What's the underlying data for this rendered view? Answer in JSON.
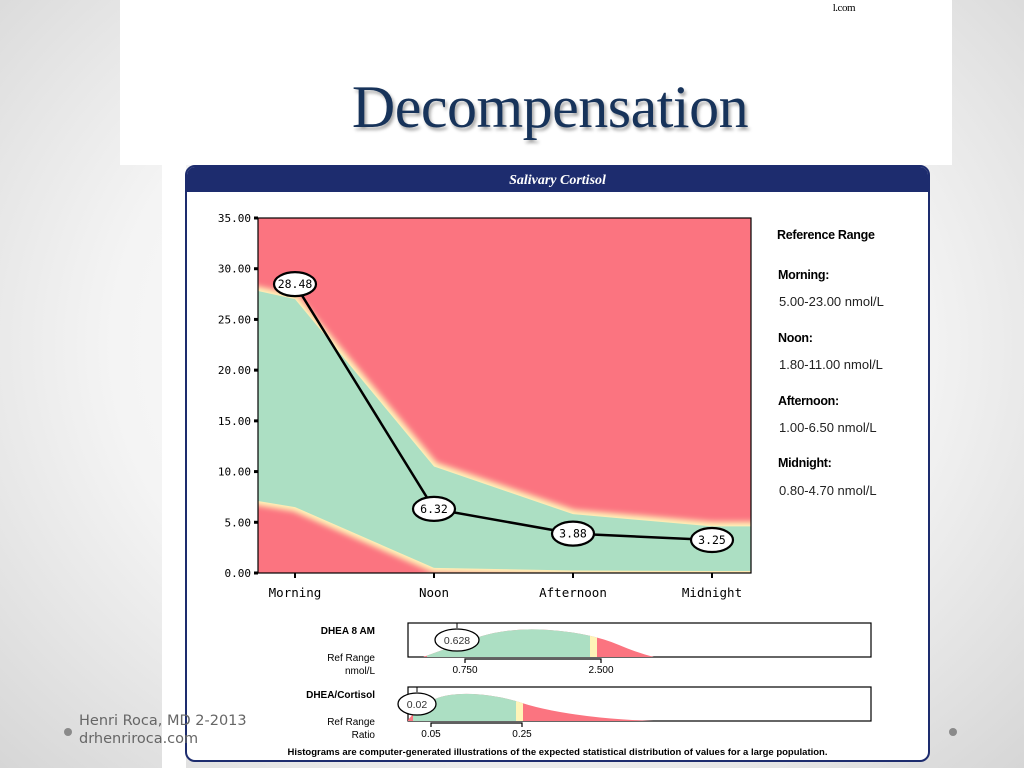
{
  "slide": {
    "title": "Decompensation",
    "site_corner": "l.com",
    "footer_author": "Henri Roca, MD 2-2013",
    "footer_site": "drhenriroca.com"
  },
  "panel": {
    "header": "Salivary Cortisol",
    "reference_title": "Reference Range",
    "ranges": [
      {
        "label": "Morning:",
        "value": "5.00-23.00 nmol/L"
      },
      {
        "label": "Noon:",
        "value": "1.80-11.00 nmol/L"
      },
      {
        "label": "Afternoon:",
        "value": "1.00-6.50 nmol/L"
      },
      {
        "label": "Midnight:",
        "value": "0.80-4.70 nmol/L"
      }
    ],
    "note": "Histograms are computer-generated illustrations of the expected statistical distribution of values for a large population."
  },
  "chart_data": [
    {
      "type": "line",
      "title": "Salivary Cortisol",
      "categories": [
        "Morning",
        "Noon",
        "Afternoon",
        "Midnight"
      ],
      "series": [
        {
          "values": [
            28.48,
            6.32,
            3.88,
            3.25
          ],
          "value_labels": [
            "28.48",
            "6.32",
            "3.88",
            "3.25"
          ]
        }
      ],
      "yticks": [
        "0.00",
        "5.00",
        "10.00",
        "15.00",
        "20.00",
        "25.00",
        "30.00",
        "35.00"
      ],
      "ylim": [
        0,
        35
      ],
      "normal_band": {
        "lower": [
          6.5,
          0.5,
          0.25,
          0.2
        ],
        "upper": [
          27.0,
          10.5,
          5.8,
          4.6
        ]
      },
      "colors": {
        "out_of_range": "#fb7480",
        "normal": "#acdfc3",
        "line": "#000000"
      }
    },
    {
      "type": "area",
      "title": "DHEA  8 AM",
      "xlabel": "Ref Range nmol/L",
      "ref_range_ticks": [
        "0.750",
        "2.500"
      ],
      "value": "0.628"
    },
    {
      "type": "area",
      "title": "DHEA/Cortisol",
      "xlabel": "Ref Range Ratio",
      "ref_range_ticks": [
        "0.05",
        "0.25"
      ],
      "value": "0.02"
    }
  ]
}
